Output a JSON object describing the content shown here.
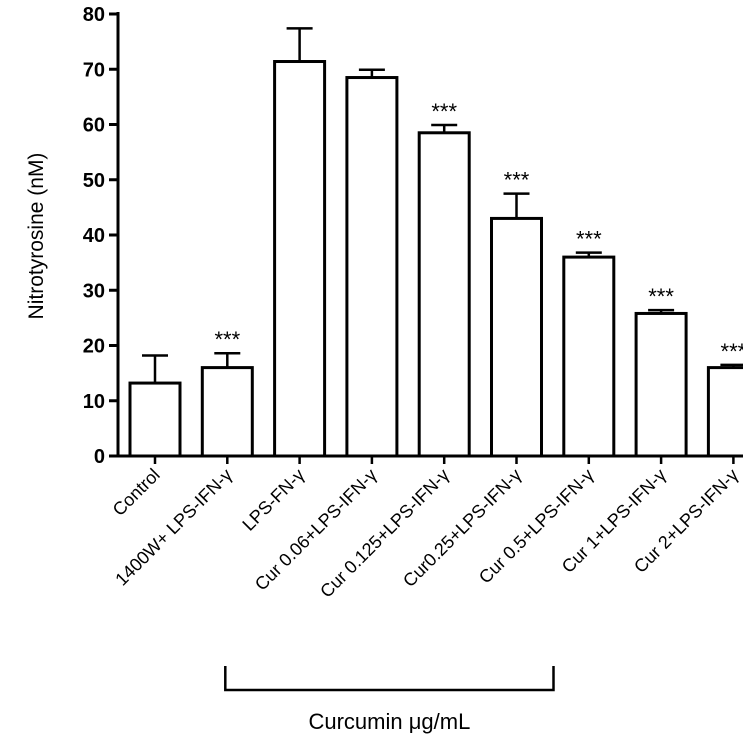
{
  "chart_data": {
    "type": "bar",
    "categories": [
      "Control",
      "1400W+ LPS-IFN-γ",
      "LPS-FN-γ",
      "Cur 0.06+LPS-IFN-γ",
      "Cur 0.125+LPS-IFN-γ",
      "Cur0.25+LPS-IFN-γ",
      "Cur 0.5+LPS-IFN-γ",
      "Cur 1+LPS-IFN-γ",
      "Cur 2+LPS-IFN-γ"
    ],
    "values": [
      13.2,
      16.0,
      71.4,
      68.5,
      58.5,
      43.0,
      36.0,
      25.8,
      16.0
    ],
    "errors": [
      5.0,
      2.6,
      6.0,
      1.4,
      1.4,
      4.5,
      0.8,
      0.6,
      0.5
    ],
    "significance": [
      "",
      "***",
      "",
      "",
      "***",
      "***",
      "***",
      "***",
      "***"
    ],
    "ylabel": "Nitrotyrosine (nM)",
    "xlabel": "",
    "ylim": [
      0,
      80
    ],
    "yticks": [
      0,
      10,
      20,
      30,
      40,
      50,
      60,
      70,
      80
    ],
    "group_bracket": {
      "label": "Curcumin  μg/mL",
      "from_category": 1,
      "to_category": 5
    },
    "grid": false,
    "legend": "none",
    "bar_fill": "#ffffff",
    "bar_stroke": "#000000"
  }
}
